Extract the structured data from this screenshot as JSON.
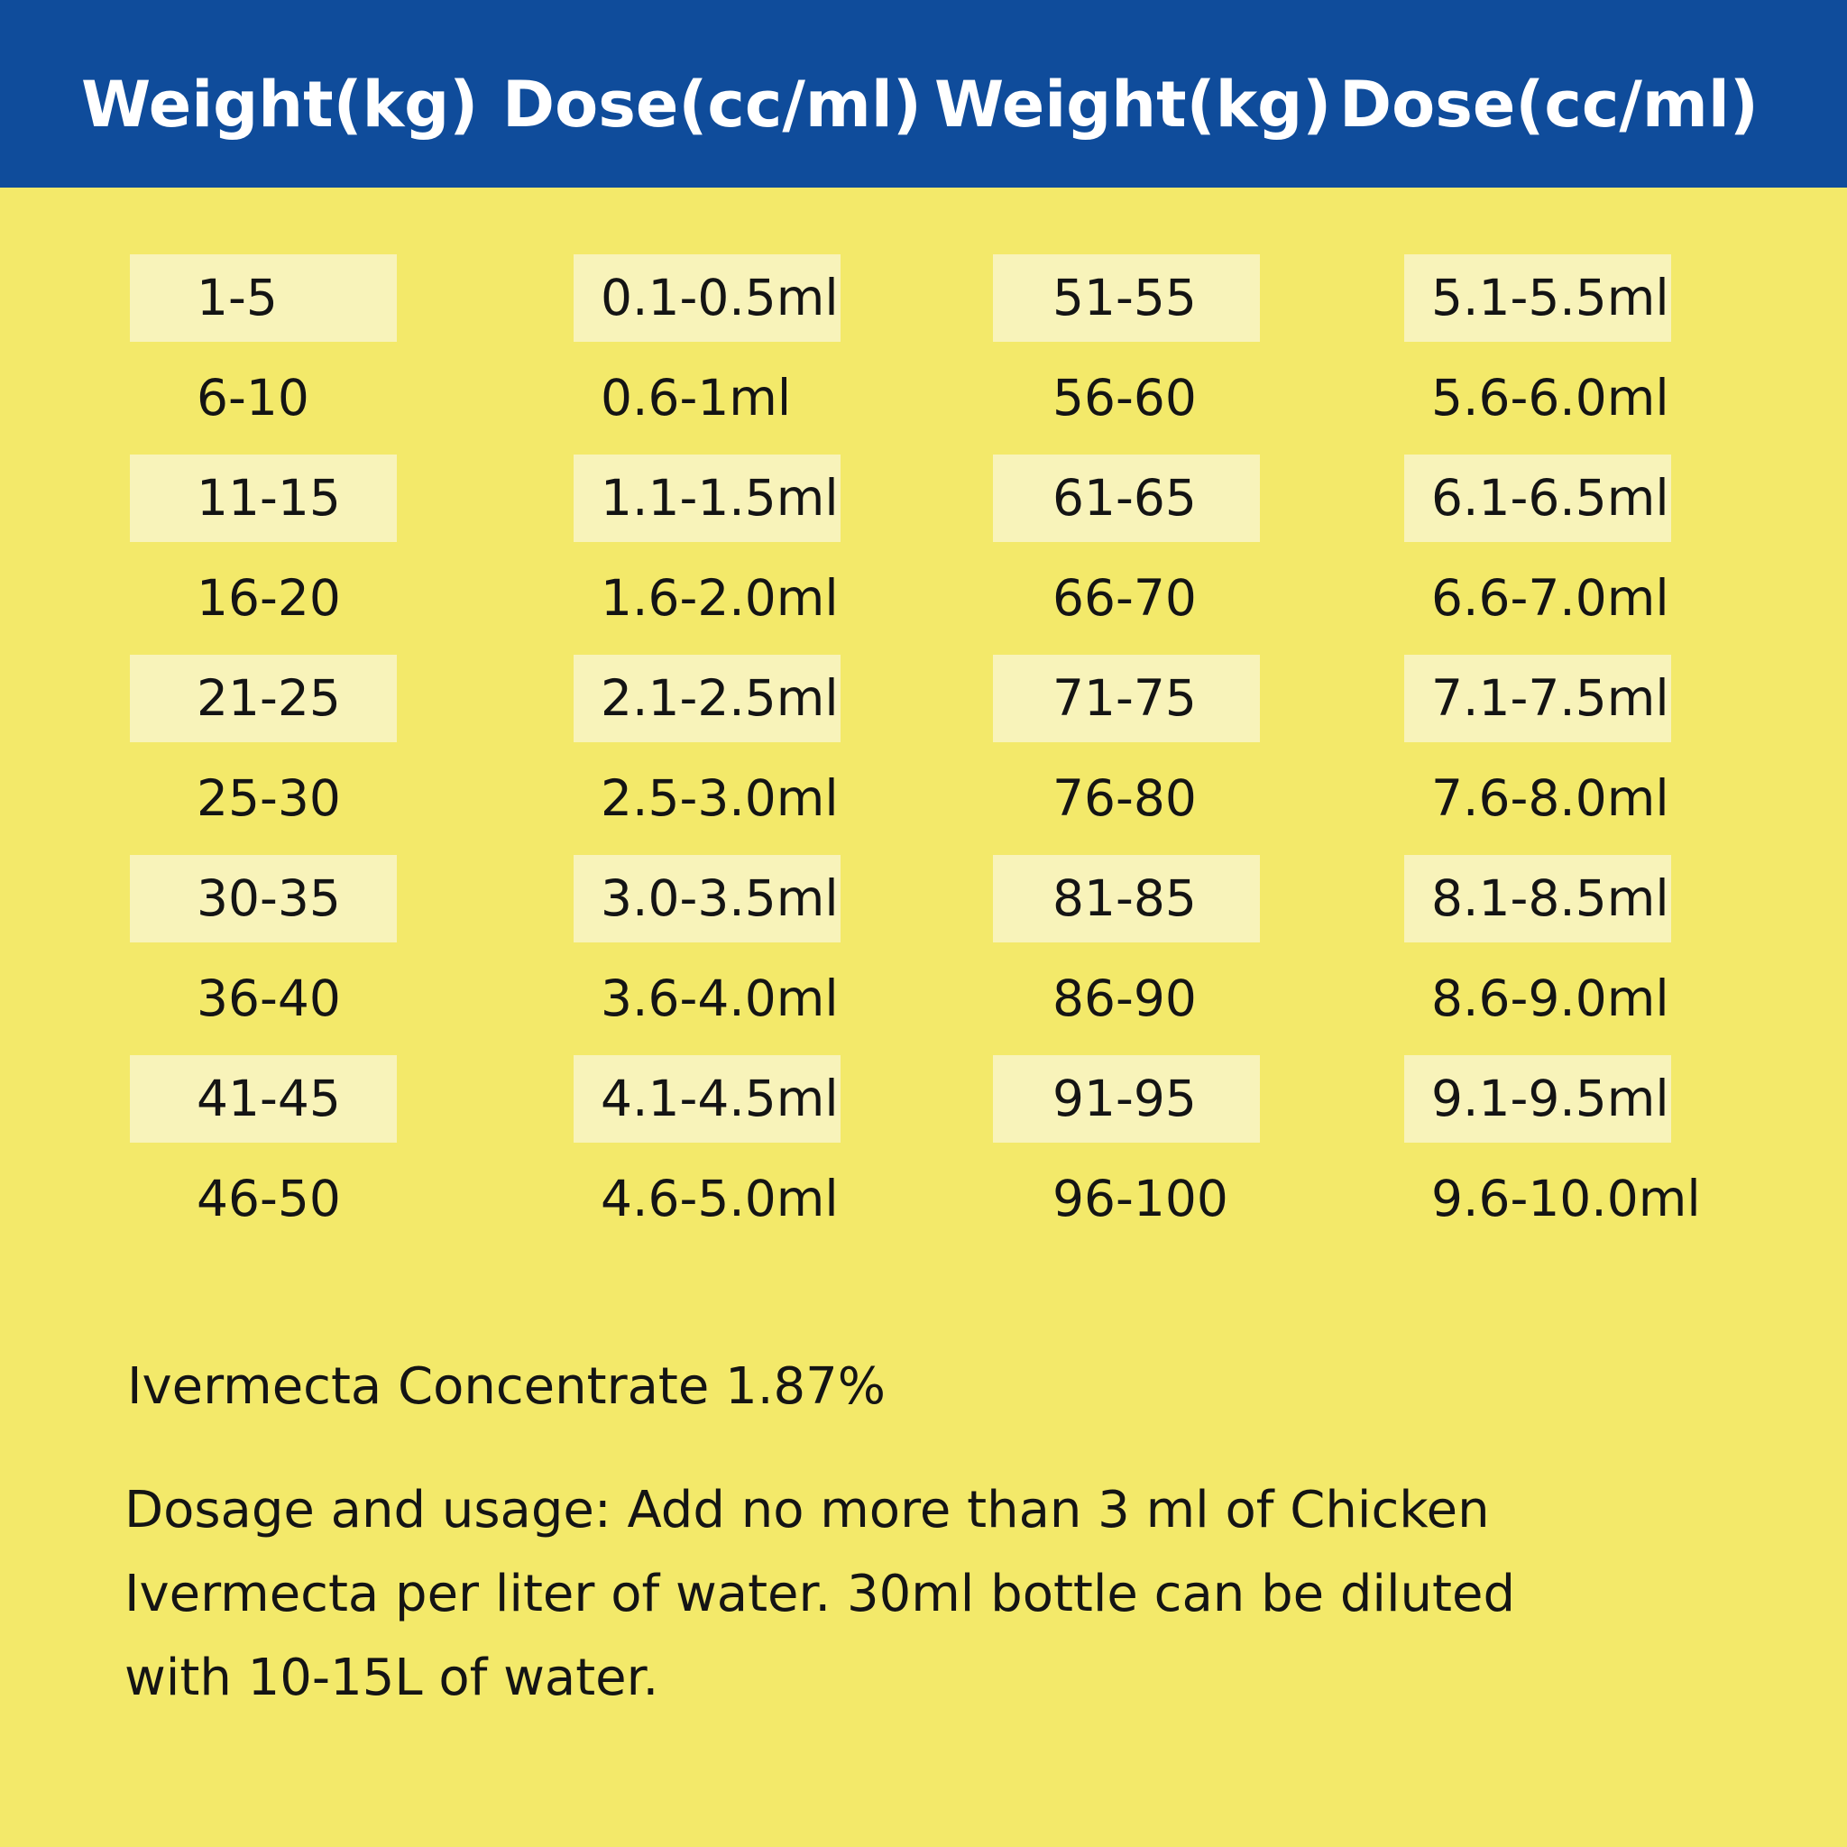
{
  "headers": [
    "Weight(kg)",
    "Dose(cc/ml)",
    "Weight(kg)",
    "Dose(cc/ml)"
  ],
  "rows": [
    [
      "1-5",
      "0.1-0.5ml",
      "51-55",
      "5.1-5.5ml"
    ],
    [
      "6-10",
      "0.6-1ml",
      "56-60",
      "5.6-6.0ml"
    ],
    [
      "11-15",
      "1.1-1.5ml",
      "61-65",
      "6.1-6.5ml"
    ],
    [
      "16-20",
      "1.6-2.0ml",
      "66-70",
      "6.6-7.0ml"
    ],
    [
      "21-25",
      "2.1-2.5ml",
      "71-75",
      "7.1-7.5ml"
    ],
    [
      "25-30",
      "2.5-3.0ml",
      "76-80",
      "7.6-8.0ml"
    ],
    [
      "30-35",
      "3.0-3.5ml",
      "81-85",
      "8.1-8.5ml"
    ],
    [
      "36-40",
      "3.6-4.0ml",
      "86-90",
      "8.6-9.0ml"
    ],
    [
      "41-45",
      "4.1-4.5ml",
      "91-95",
      "9.1-9.5ml"
    ],
    [
      "46-50",
      "4.6-5.0ml",
      "96-100",
      "9.6-10.0ml"
    ]
  ],
  "concentrate": "Ivermecta Concentrate 1.87%",
  "usage_lines": [
    "Dosage and usage: Add no more than 3 ml of Chicken",
    "Ivermecta per liter of water. 30ml bottle can be diluted",
    "with 10-15L of water."
  ],
  "colors": {
    "header_bg": "#0f4c9b",
    "page_bg": "#f3e96a",
    "shaded_cell": "#f8f3ba",
    "header_text": "#ffffff",
    "body_text": "#141414"
  }
}
